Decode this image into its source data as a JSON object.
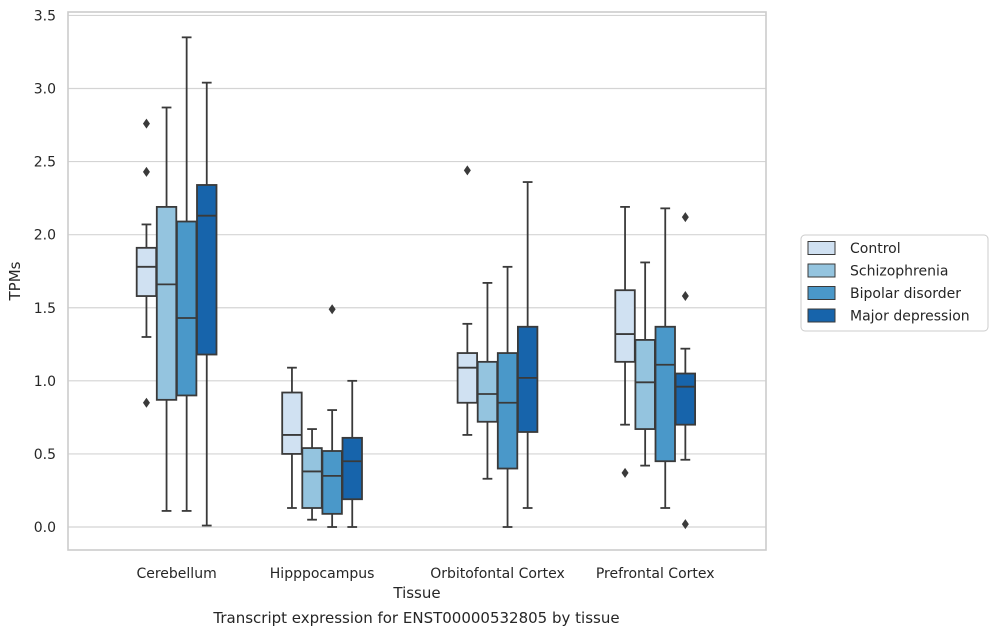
{
  "caption": "Transcript expression for ENST00000532805 by tissue",
  "chart_data": {
    "type": "box",
    "xlabel": "Tissue",
    "ylabel": "TPMs",
    "ylim": [
      -0.16,
      3.53
    ],
    "yticks": [
      "0.0",
      "0.5",
      "1.0",
      "1.5",
      "2.0",
      "2.5",
      "3.0",
      "3.5"
    ],
    "grid": "horizontal",
    "legend_position": "right",
    "categories": [
      "Cerebellum",
      "Hipppocampus",
      "Orbitofontal Cortex",
      "Prefrontal Cortex"
    ],
    "series": [
      {
        "name": "Control",
        "color": "#d0e1f2",
        "boxes": [
          {
            "whislo": 1.3,
            "q1": 1.58,
            "med": 1.78,
            "q3": 1.91,
            "whishi": 2.07,
            "fliers": [
              2.76,
              2.43,
              0.85
            ]
          },
          {
            "whislo": 0.13,
            "q1": 0.5,
            "med": 0.63,
            "q3": 0.92,
            "whishi": 1.09,
            "fliers": []
          },
          {
            "whislo": 0.63,
            "q1": 0.85,
            "med": 1.09,
            "q3": 1.19,
            "whishi": 1.39,
            "fliers": [
              2.44
            ]
          },
          {
            "whislo": 0.7,
            "q1": 1.13,
            "med": 1.32,
            "q3": 1.62,
            "whishi": 2.19,
            "fliers": [
              0.37
            ]
          }
        ]
      },
      {
        "name": "Schizophrenia",
        "color": "#94c4df",
        "boxes": [
          {
            "whislo": 0.11,
            "q1": 0.87,
            "med": 1.66,
            "q3": 2.19,
            "whishi": 2.87,
            "fliers": []
          },
          {
            "whislo": 0.05,
            "q1": 0.13,
            "med": 0.38,
            "q3": 0.54,
            "whishi": 0.67,
            "fliers": []
          },
          {
            "whislo": 0.33,
            "q1": 0.72,
            "med": 0.91,
            "q3": 1.13,
            "whishi": 1.67,
            "fliers": []
          },
          {
            "whislo": 0.42,
            "q1": 0.67,
            "med": 0.99,
            "q3": 1.28,
            "whishi": 1.81,
            "fliers": []
          }
        ]
      },
      {
        "name": "Bipolar disorder",
        "color": "#4a98c9",
        "boxes": [
          {
            "whislo": 0.11,
            "q1": 0.9,
            "med": 1.43,
            "q3": 2.09,
            "whishi": 3.35,
            "fliers": []
          },
          {
            "whislo": 0.0,
            "q1": 0.09,
            "med": 0.35,
            "q3": 0.52,
            "whishi": 0.8,
            "fliers": [
              1.49
            ]
          },
          {
            "whislo": 0.0,
            "q1": 0.4,
            "med": 0.85,
            "q3": 1.19,
            "whishi": 1.78,
            "fliers": []
          },
          {
            "whislo": 0.13,
            "q1": 0.45,
            "med": 1.11,
            "q3": 1.37,
            "whishi": 2.18,
            "fliers": []
          }
        ]
      },
      {
        "name": "Major depression",
        "color": "#1764ab",
        "boxes": [
          {
            "whislo": 0.01,
            "q1": 1.18,
            "med": 2.13,
            "q3": 2.34,
            "whishi": 3.04,
            "fliers": []
          },
          {
            "whislo": 0.0,
            "q1": 0.19,
            "med": 0.45,
            "q3": 0.61,
            "whishi": 1.0,
            "fliers": []
          },
          {
            "whislo": 0.13,
            "q1": 0.65,
            "med": 1.02,
            "q3": 1.37,
            "whishi": 2.36,
            "fliers": []
          },
          {
            "whislo": 0.46,
            "q1": 0.7,
            "med": 0.96,
            "q3": 1.05,
            "whishi": 1.22,
            "fliers": [
              2.12,
              1.58,
              0.02
            ]
          }
        ]
      }
    ]
  }
}
